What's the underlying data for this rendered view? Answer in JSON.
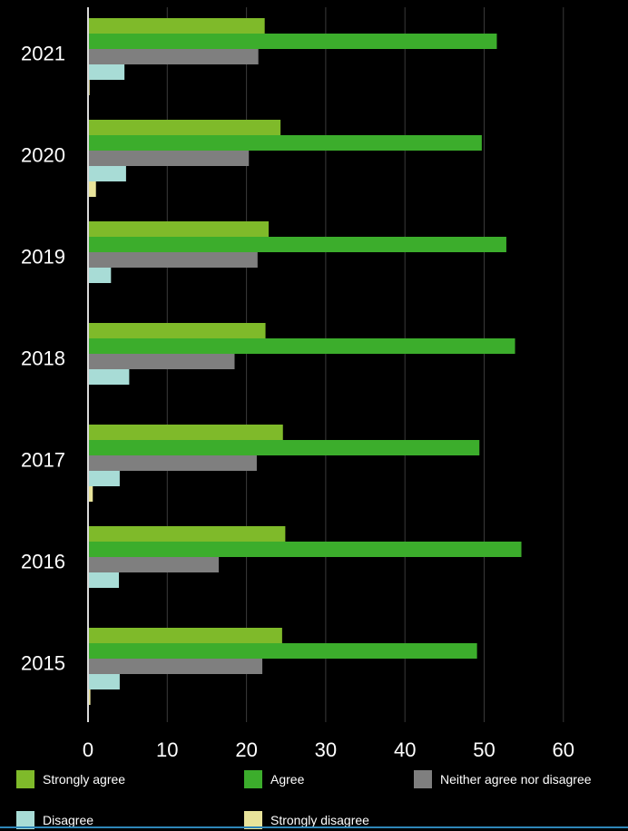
{
  "chart_data": {
    "type": "bar",
    "orientation": "horizontal",
    "categories": [
      "2021",
      "2020",
      "2019",
      "2018",
      "2017",
      "2016",
      "2015"
    ],
    "series": [
      {
        "name": "Strongly agree",
        "color": "#7fba2a",
        "values": [
          22.3,
          24.3,
          22.8,
          22.4,
          24.6,
          24.9,
          24.5
        ]
      },
      {
        "name": "Agree",
        "color": "#3cad2c",
        "values": [
          51.6,
          49.7,
          52.8,
          53.9,
          49.4,
          54.7,
          49.1
        ]
      },
      {
        "name": "Neither agree nor disagree",
        "color": "#7f7f7f",
        "values": [
          21.5,
          20.3,
          21.4,
          18.5,
          21.3,
          16.5,
          22.0
        ]
      },
      {
        "name": "Disagree",
        "color": "#a8dcd6",
        "values": [
          4.6,
          4.8,
          2.9,
          5.2,
          4.0,
          3.9,
          4.0
        ]
      },
      {
        "name": "Strongly disagree",
        "color": "#e8e39a",
        "values": [
          0.2,
          1.0,
          0.1,
          0.1,
          0.6,
          0.0,
          0.3
        ]
      }
    ],
    "xlim": [
      0,
      60
    ],
    "xticks": [
      "0",
      "10",
      "20",
      "30",
      "40",
      "50",
      "60"
    ],
    "grid": true,
    "legend_position": "bottom",
    "title": "",
    "xlabel": "",
    "ylabel": ""
  }
}
